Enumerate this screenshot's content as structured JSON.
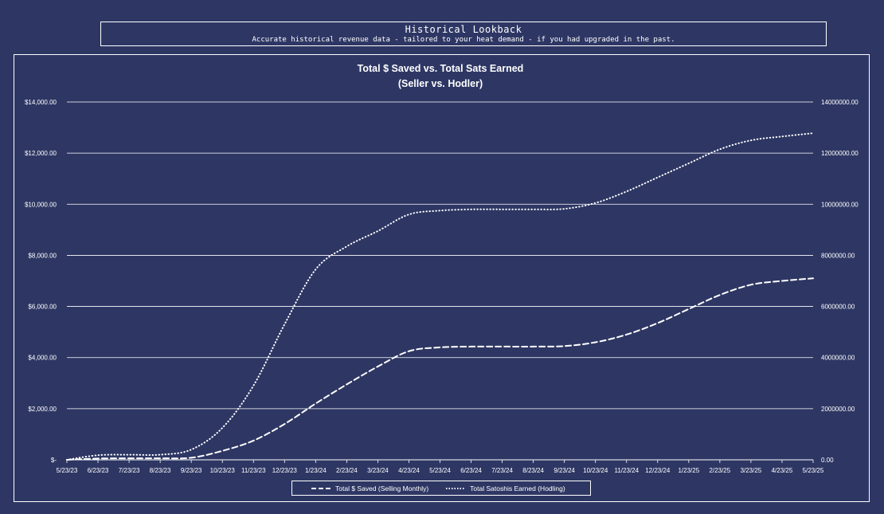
{
  "header": {
    "title": "Historical Lookback",
    "subtitle": "Accurate historical revenue data - tailored to your heat demand - if you had upgraded in the past."
  },
  "colors": {
    "background": "#2e3764",
    "foreground": "#ffffff"
  },
  "chart_data": {
    "type": "line",
    "title": "Total $ Saved vs. Total Sats Earned",
    "subtitle": "(Seller vs. Hodler)",
    "x": [
      "5/23/23",
      "6/23/23",
      "7/23/23",
      "8/23/23",
      "9/23/23",
      "10/23/23",
      "11/23/23",
      "12/23/23",
      "1/23/24",
      "2/23/24",
      "3/23/24",
      "4/23/24",
      "5/23/24",
      "6/23/24",
      "7/23/24",
      "8/23/24",
      "9/23/24",
      "10/23/24",
      "11/23/24",
      "12/23/24",
      "1/23/25",
      "2/23/25",
      "3/23/25",
      "4/23/25",
      "5/23/25"
    ],
    "x_ticks": [
      "5/23/23",
      "6/23/23",
      "7/23/23",
      "8/23/23",
      "9/23/23",
      "10/23/23",
      "11/23/23",
      "12/23/23",
      "1/23/24",
      "2/23/24",
      "3/23/24",
      "4/23/24",
      "5/23/24",
      "6/23/24",
      "7/23/24",
      "8/23/24",
      "9/23/24",
      "10/23/24",
      "11/23/24",
      "12/23/24",
      "1/23/25",
      "2/23/25",
      "3/23/25",
      "4/23/25",
      "5/23/25"
    ],
    "y_left_ticks": [
      "$-",
      "$2,000.00",
      "$4,000.00",
      "$6,000.00",
      "$8,000.00",
      "$10,000.00",
      "$12,000.00",
      "$14,000.00"
    ],
    "y_right_ticks": [
      "0.00",
      "2000000.00",
      "4000000.00",
      "6000000.00",
      "8000000.00",
      "10000000.00",
      "12000000.00",
      "14000000.00"
    ],
    "ylim_left": [
      0,
      14000
    ],
    "ylim_right": [
      0,
      14000000
    ],
    "grid": true,
    "legend_position": "bottom",
    "series": [
      {
        "name": "Total $ Saved (Selling Monthly)",
        "axis": "left",
        "style": "dashed",
        "values": [
          0,
          50,
          60,
          60,
          80,
          350,
          750,
          1400,
          2200,
          2950,
          3650,
          4250,
          4400,
          4430,
          4430,
          4430,
          4450,
          4600,
          4900,
          5350,
          5900,
          6450,
          6850,
          7000,
          7100
        ]
      },
      {
        "name": "Total Satoshis Earned (Hodling)",
        "axis": "right",
        "style": "dotted",
        "values": [
          0,
          180000,
          200000,
          200000,
          400000,
          1250000,
          2900000,
          5300000,
          7450000,
          8350000,
          8950000,
          9600000,
          9750000,
          9800000,
          9800000,
          9800000,
          9820000,
          10050000,
          10500000,
          11050000,
          11600000,
          12150000,
          12500000,
          12650000,
          12780000
        ]
      }
    ]
  }
}
